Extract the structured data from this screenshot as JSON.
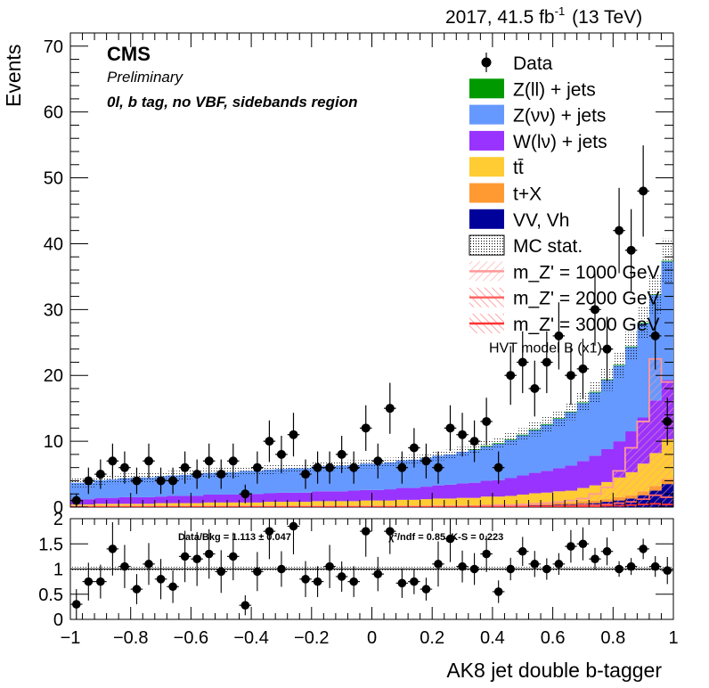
{
  "header": {
    "lumi": "2017, 41.5 fb",
    "lumi_sup": "-1",
    "energy": "(13 TeV)"
  },
  "cms": {
    "logo": "CMS",
    "status": "Preliminary",
    "region": "0l, b tag, no VBF, sidebands region"
  },
  "chart_data": {
    "type": "bar",
    "stacked": true,
    "xlabel": "AK8 jet double b-tagger",
    "ylabel": "Events",
    "xlim": [
      -1,
      1
    ],
    "ylim": [
      0,
      72
    ],
    "x_ticks": [
      "−1",
      "−0.8",
      "−0.6",
      "−0.4",
      "−0.2",
      "0",
      "0.2",
      "0.4",
      "0.6",
      "0.8",
      "1"
    ],
    "y_ticks": [
      "0",
      "10",
      "20",
      "30",
      "40",
      "50",
      "60",
      "70"
    ],
    "bin_edges": [
      -1.0,
      -0.96,
      -0.92,
      -0.88,
      -0.84,
      -0.8,
      -0.76,
      -0.72,
      -0.68,
      -0.64,
      -0.6,
      -0.56,
      -0.52,
      -0.48,
      -0.44,
      -0.4,
      -0.36,
      -0.32,
      -0.28,
      -0.24,
      -0.2,
      -0.16,
      -0.12,
      -0.08,
      -0.04,
      0.0,
      0.04,
      0.08,
      0.12,
      0.16,
      0.2,
      0.24,
      0.28,
      0.32,
      0.36,
      0.4,
      0.44,
      0.48,
      0.52,
      0.56,
      0.6,
      0.64,
      0.68,
      0.72,
      0.76,
      0.8,
      0.84,
      0.88,
      0.92,
      0.96,
      1.0
    ],
    "series": [
      {
        "name": "VV, Vh",
        "color": "#00009a",
        "values": [
          0.1,
          0.1,
          0.1,
          0.1,
          0.1,
          0.1,
          0.1,
          0.1,
          0.1,
          0.1,
          0.1,
          0.1,
          0.1,
          0.1,
          0.1,
          0.1,
          0.1,
          0.1,
          0.1,
          0.1,
          0.1,
          0.1,
          0.1,
          0.1,
          0.1,
          0.1,
          0.1,
          0.1,
          0.1,
          0.1,
          0.1,
          0.1,
          0.1,
          0.1,
          0.2,
          0.2,
          0.2,
          0.2,
          0.3,
          0.3,
          0.4,
          0.4,
          0.5,
          0.6,
          0.8,
          1.0,
          1.3,
          1.8,
          2.5,
          3.5
        ]
      },
      {
        "name": "t+X",
        "color": "#ff9a33",
        "values": [
          0.1,
          0.1,
          0.1,
          0.1,
          0.1,
          0.1,
          0.1,
          0.1,
          0.1,
          0.1,
          0.1,
          0.1,
          0.1,
          0.1,
          0.1,
          0.1,
          0.1,
          0.1,
          0.1,
          0.1,
          0.1,
          0.1,
          0.1,
          0.1,
          0.1,
          0.1,
          0.1,
          0.1,
          0.1,
          0.1,
          0.2,
          0.2,
          0.2,
          0.2,
          0.2,
          0.2,
          0.2,
          0.3,
          0.3,
          0.3,
          0.3,
          0.3,
          0.4,
          0.4,
          0.4,
          0.5,
          0.5,
          0.6,
          0.7,
          0.8
        ]
      },
      {
        "name": "tt̄",
        "color": "#ffcc33",
        "values": [
          0.2,
          0.2,
          0.3,
          0.3,
          0.3,
          0.3,
          0.3,
          0.4,
          0.4,
          0.4,
          0.4,
          0.5,
          0.5,
          0.5,
          0.5,
          0.5,
          0.6,
          0.6,
          0.6,
          0.6,
          0.7,
          0.7,
          0.7,
          0.7,
          0.8,
          0.8,
          0.8,
          0.9,
          0.9,
          1.0,
          1.0,
          1.0,
          1.1,
          1.1,
          1.2,
          1.2,
          1.3,
          1.4,
          1.5,
          1.6,
          1.7,
          1.8,
          2.0,
          2.3,
          2.6,
          3.0,
          3.5,
          4.2,
          5.0,
          6.0
        ]
      },
      {
        "name": "W(lν) + jets",
        "color": "#9933ff",
        "values": [
          0.8,
          0.8,
          0.9,
          0.9,
          1.0,
          1.0,
          1.0,
          1.0,
          1.1,
          1.1,
          1.1,
          1.2,
          1.2,
          1.2,
          1.3,
          1.3,
          1.3,
          1.4,
          1.4,
          1.4,
          1.5,
          1.5,
          1.5,
          1.6,
          1.6,
          1.6,
          1.7,
          1.8,
          1.8,
          1.9,
          2.0,
          2.1,
          2.2,
          2.3,
          2.4,
          2.5,
          2.7,
          2.9,
          3.1,
          3.3,
          3.5,
          3.8,
          4.1,
          4.5,
          5.0,
          5.5,
          6.2,
          7.0,
          8.0,
          9.0
        ]
      },
      {
        "name": "Z(νν) + jets",
        "color": "#6699ff",
        "values": [
          2.5,
          2.5,
          2.7,
          2.8,
          2.9,
          3.0,
          3.0,
          3.1,
          3.1,
          3.2,
          3.3,
          3.3,
          3.4,
          3.4,
          3.5,
          3.5,
          3.6,
          3.6,
          3.7,
          3.7,
          3.8,
          3.8,
          3.9,
          3.9,
          4.0,
          4.0,
          4.1,
          4.2,
          4.3,
          4.4,
          4.5,
          4.6,
          4.8,
          5.0,
          5.2,
          5.5,
          5.8,
          6.1,
          6.5,
          7.0,
          7.5,
          8.1,
          8.8,
          9.6,
          10.5,
          11.5,
          12.8,
          14.3,
          16.0,
          18.0
        ]
      },
      {
        "name": "Z(ll) + jets",
        "color": "#009900",
        "values": [
          0.0,
          0.0,
          0.0,
          0.0,
          0.0,
          0.0,
          0.0,
          0.0,
          0.0,
          0.0,
          0.0,
          0.0,
          0.0,
          0.0,
          0.0,
          0.0,
          0.0,
          0.0,
          0.0,
          0.0,
          0.0,
          0.0,
          0.0,
          0.0,
          0.0,
          0.0,
          0.0,
          0.0,
          0.0,
          0.0,
          0.0,
          0.0,
          0.0,
          0.1,
          0.1,
          0.1,
          0.1,
          0.1,
          0.1,
          0.1,
          0.1,
          0.1,
          0.1,
          0.1,
          0.1,
          0.1,
          0.1,
          0.1,
          0.1,
          0.1
        ]
      }
    ],
    "data": {
      "name": "Data",
      "values": [
        1,
        4,
        5,
        7,
        6,
        4,
        7,
        4,
        4,
        6,
        5,
        7,
        5,
        7,
        2,
        6,
        10,
        8,
        11,
        5,
        6,
        6,
        8,
        6,
        12,
        7,
        15,
        6,
        9,
        7,
        6,
        12,
        11,
        10,
        13,
        6,
        20,
        22,
        18,
        22,
        26,
        20,
        21,
        30,
        24,
        42,
        39,
        48,
        26,
        13
      ]
    },
    "signals": [
      {
        "name": "m_Z' = 1000 GeV",
        "color": "#ff9999",
        "values": [
          0.1,
          0.1,
          0.1,
          0.1,
          0.1,
          0.1,
          0.1,
          0.1,
          0.1,
          0.1,
          0.1,
          0.1,
          0.1,
          0.1,
          0.1,
          0.1,
          0.1,
          0.1,
          0.1,
          0.1,
          0.1,
          0.1,
          0.1,
          0.1,
          0.1,
          0.1,
          0.1,
          0.1,
          0.1,
          0.1,
          0.1,
          0.1,
          0.1,
          0.1,
          0.2,
          0.3,
          0.3,
          0.4,
          0.5,
          0.6,
          0.8,
          1.0,
          1.3,
          2.0,
          3.0,
          5.5,
          9.0,
          13.0,
          22.5,
          19.0
        ]
      },
      {
        "name": "m_Z' = 2000 GeV",
        "color": "#ff6666",
        "values": [
          0.0,
          0.0,
          0.0,
          0.0,
          0.0,
          0.0,
          0.0,
          0.0,
          0.0,
          0.0,
          0.0,
          0.0,
          0.0,
          0.0,
          0.0,
          0.0,
          0.0,
          0.0,
          0.0,
          0.0,
          0.0,
          0.0,
          0.0,
          0.0,
          0.0,
          0.0,
          0.0,
          0.0,
          0.0,
          0.0,
          0.0,
          0.0,
          0.0,
          0.1,
          0.1,
          0.1,
          0.1,
          0.1,
          0.1,
          0.1,
          0.2,
          0.2,
          0.3,
          0.3,
          0.4,
          0.6,
          0.8,
          1.2,
          1.8,
          1.5
        ]
      },
      {
        "name": "m_Z' = 3000 GeV",
        "color": "#ff3333",
        "values": [
          0.0,
          0.0,
          0.0,
          0.0,
          0.0,
          0.0,
          0.0,
          0.0,
          0.0,
          0.0,
          0.0,
          0.0,
          0.0,
          0.0,
          0.0,
          0.0,
          0.0,
          0.0,
          0.0,
          0.0,
          0.0,
          0.0,
          0.0,
          0.0,
          0.0,
          0.0,
          0.0,
          0.0,
          0.0,
          0.0,
          0.0,
          0.0,
          0.0,
          0.0,
          0.0,
          0.0,
          0.0,
          0.0,
          0.1,
          0.1,
          0.1,
          0.1,
          0.1,
          0.1,
          0.2,
          0.2,
          0.3,
          0.4,
          0.5,
          0.4
        ]
      }
    ],
    "legend": {
      "placement": "top-right",
      "items": [
        {
          "label": "Data",
          "kind": "marker"
        },
        {
          "label": "Z(ll) + jets",
          "kind": "fill",
          "color": "#009900"
        },
        {
          "label": "Z(νν) + jets",
          "kind": "fill",
          "color": "#6699ff"
        },
        {
          "label": "W(lν) + jets",
          "kind": "fill",
          "color": "#9933ff"
        },
        {
          "label": "tt̄",
          "kind": "fill",
          "color": "#ffcc33"
        },
        {
          "label": "t+X",
          "kind": "fill",
          "color": "#ff9a33"
        },
        {
          "label": "VV, Vh",
          "kind": "fill",
          "color": "#00009a"
        },
        {
          "label": "MC stat.",
          "kind": "hatch"
        },
        {
          "label": "m_Z' = 1000 GeV",
          "kind": "line",
          "color": "#ff9999"
        },
        {
          "label": "m_Z' = 2000 GeV",
          "kind": "line",
          "color": "#ff6666"
        },
        {
          "label": "m_Z' = 3000 GeV",
          "kind": "line",
          "color": "#ff3333"
        }
      ],
      "note": "HVT model B (x1)"
    },
    "ratio_panel": {
      "ylim": [
        0,
        2
      ],
      "y_ticks": [
        "0",
        "0.5",
        "1",
        "1.5",
        "2"
      ],
      "values": [
        0.3,
        0.75,
        0.75,
        1.4,
        1.05,
        0.6,
        1.1,
        0.8,
        0.65,
        1.25,
        1.2,
        1.3,
        0.95,
        1.25,
        0.28,
        0.95,
        1.75,
        1.0,
        1.85,
        0.8,
        0.75,
        1.05,
        0.85,
        0.75,
        1.75,
        0.9,
        1.75,
        0.72,
        0.75,
        0.6,
        1.1,
        1.6,
        1.05,
        1.0,
        1.3,
        0.55,
        1.0,
        1.35,
        1.1,
        1.0,
        1.1,
        1.45,
        1.5,
        1.2,
        1.35,
        1.0,
        1.05,
        1.4,
        1.05,
        0.97
      ],
      "text_left": "Data/Bkg = 1.113 ± 0.047",
      "text_right": "χ²/ndf = 0.85,   K-S = 0.223"
    }
  }
}
